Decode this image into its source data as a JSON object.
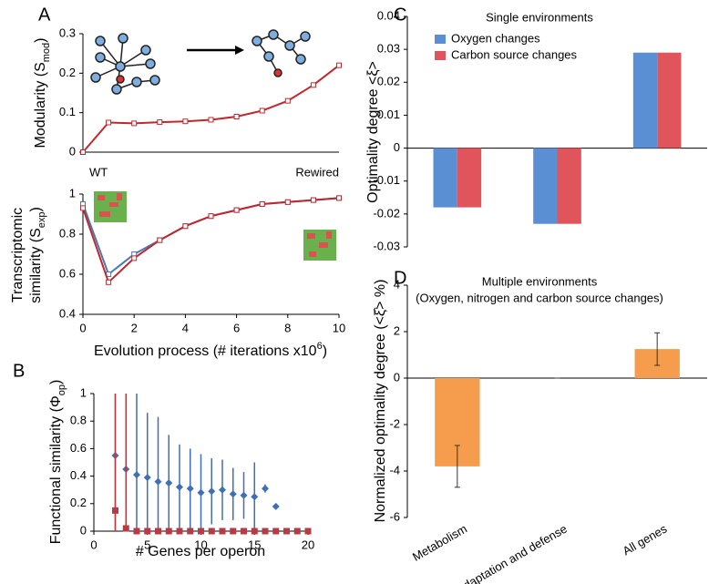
{
  "chart_data": [
    {
      "type": "line",
      "panel": "A",
      "ylabel_lines": [
        [
          "Modularity (S",
          "mod",
          ")"
        ]
      ],
      "x": [
        0,
        1,
        2,
        3,
        4,
        5,
        6,
        7,
        8,
        9,
        10
      ],
      "series": [
        {
          "color": "#c0282d",
          "values": [
            0,
            0.075,
            0.073,
            0.076,
            0.078,
            0.082,
            0.09,
            0.105,
            0.13,
            0.17,
            0.22
          ]
        }
      ],
      "xlim": [
        0,
        10
      ],
      "ylim": [
        0,
        0.3
      ],
      "yticks": [
        0,
        0.1,
        0.2,
        0.3
      ]
    },
    {
      "type": "line",
      "annotations": [
        "WT",
        "Rewired"
      ],
      "ylabel_lines": [
        [
          "Transcriptomic"
        ],
        [
          "similarity (S",
          "exp",
          ")"
        ]
      ],
      "xlabel_parts": [
        "Evolution process (# iterations x10",
        "6",
        ")"
      ],
      "x": [
        0,
        1,
        2,
        3,
        4,
        5,
        6,
        7,
        8,
        9,
        10
      ],
      "series": [
        {
          "color": "#4a78b8",
          "values": [
            0.95,
            0.6,
            0.7,
            0.77,
            0.84,
            0.89,
            0.92,
            0.95,
            0.96,
            0.97,
            0.98
          ]
        },
        {
          "color": "#c0282d",
          "values": [
            0.93,
            0.56,
            0.68,
            0.77,
            0.84,
            0.89,
            0.92,
            0.95,
            0.96,
            0.97,
            0.98
          ]
        }
      ],
      "xlim": [
        0,
        10
      ],
      "ylim": [
        0.4,
        1
      ],
      "xticks": [
        0,
        2,
        4,
        6,
        8,
        10
      ],
      "yticks": [
        0.4,
        0.6,
        0.8,
        1
      ]
    },
    {
      "type": "scatter",
      "panel": "B",
      "ylabel_lines": [
        [
          "Functional similarity (Φ",
          "op",
          ")"
        ]
      ],
      "xlabel_parts": [
        "# Genes per operon"
      ],
      "series": [
        {
          "color": "#3f6fb5",
          "marker": "diamond",
          "x": [
            2,
            3,
            4,
            5,
            6,
            7,
            8,
            9,
            10,
            11,
            12,
            13,
            14,
            15,
            16,
            17
          ],
          "values": [
            0.55,
            0.45,
            0.41,
            0.39,
            0.36,
            0.35,
            0.32,
            0.31,
            0.28,
            0.29,
            0.3,
            0.27,
            0.26,
            0.25,
            0.31,
            0.18
          ],
          "errors": [
            0.6,
            0.6,
            0.59,
            0.47,
            0.47,
            0.35,
            0.31,
            0.29,
            0.28,
            0.24,
            0.22,
            0.19,
            0.17,
            0.25,
            0.03,
            0
          ]
        },
        {
          "color": "#b83a45",
          "marker": "square",
          "x": [
            2,
            3,
            4,
            5,
            6,
            7,
            8,
            9,
            10,
            11,
            12,
            13,
            14,
            15,
            16,
            17,
            18,
            19,
            20
          ],
          "values": [
            0.15,
            0.02,
            0,
            0,
            0,
            0,
            0,
            0,
            0,
            0,
            0,
            0,
            0,
            0,
            0,
            0,
            0,
            0,
            0
          ],
          "errors": [
            0.85,
            0.98,
            0,
            0,
            0,
            0,
            0,
            0,
            0,
            0,
            0,
            0,
            0,
            0,
            0,
            0,
            0,
            0,
            0
          ]
        }
      ],
      "xlim": [
        0,
        20
      ],
      "ylim": [
        0,
        1
      ],
      "xticks": [
        0,
        5,
        10,
        15,
        20
      ],
      "yticks": [
        0,
        0.2,
        0.4,
        0.6,
        0.8,
        1
      ]
    },
    {
      "type": "bar",
      "panel": "C",
      "title": "Single environments",
      "ylabel": "Optimality degree <ξ>",
      "categories": [
        null,
        null,
        null
      ],
      "series": [
        {
          "name": "Oxygen changes",
          "color": "#5b8fd4",
          "values": [
            -0.018,
            -0.023,
            0.029
          ]
        },
        {
          "name": "Carbon source changes",
          "color": "#e0555c",
          "values": [
            -0.018,
            -0.023,
            0.029
          ]
        }
      ],
      "ylim": [
        -0.03,
        0.04
      ],
      "yticks": [
        -0.03,
        -0.02,
        -0.01,
        0,
        0.01,
        0.02,
        0.03,
        0.04
      ],
      "legend": "upper left"
    },
    {
      "type": "bar",
      "panel": "D",
      "title": "Multiple environments",
      "subtitle": "(Oxygen, nitrogen and carbon source changes)",
      "ylabel": "Normalized optimality degree (<ξ̂> %)",
      "categories": [
        "Metabolism",
        "Adaptation and defense",
        "All genes"
      ],
      "series": [
        {
          "color": "#f59d4c",
          "values": [
            -3.8,
            0,
            1.25
          ],
          "errors": [
            0.9,
            0,
            0.7
          ]
        }
      ],
      "ylim": [
        -6,
        4
      ],
      "yticks": [
        -6,
        -4,
        -2,
        0,
        2,
        4
      ]
    }
  ]
}
